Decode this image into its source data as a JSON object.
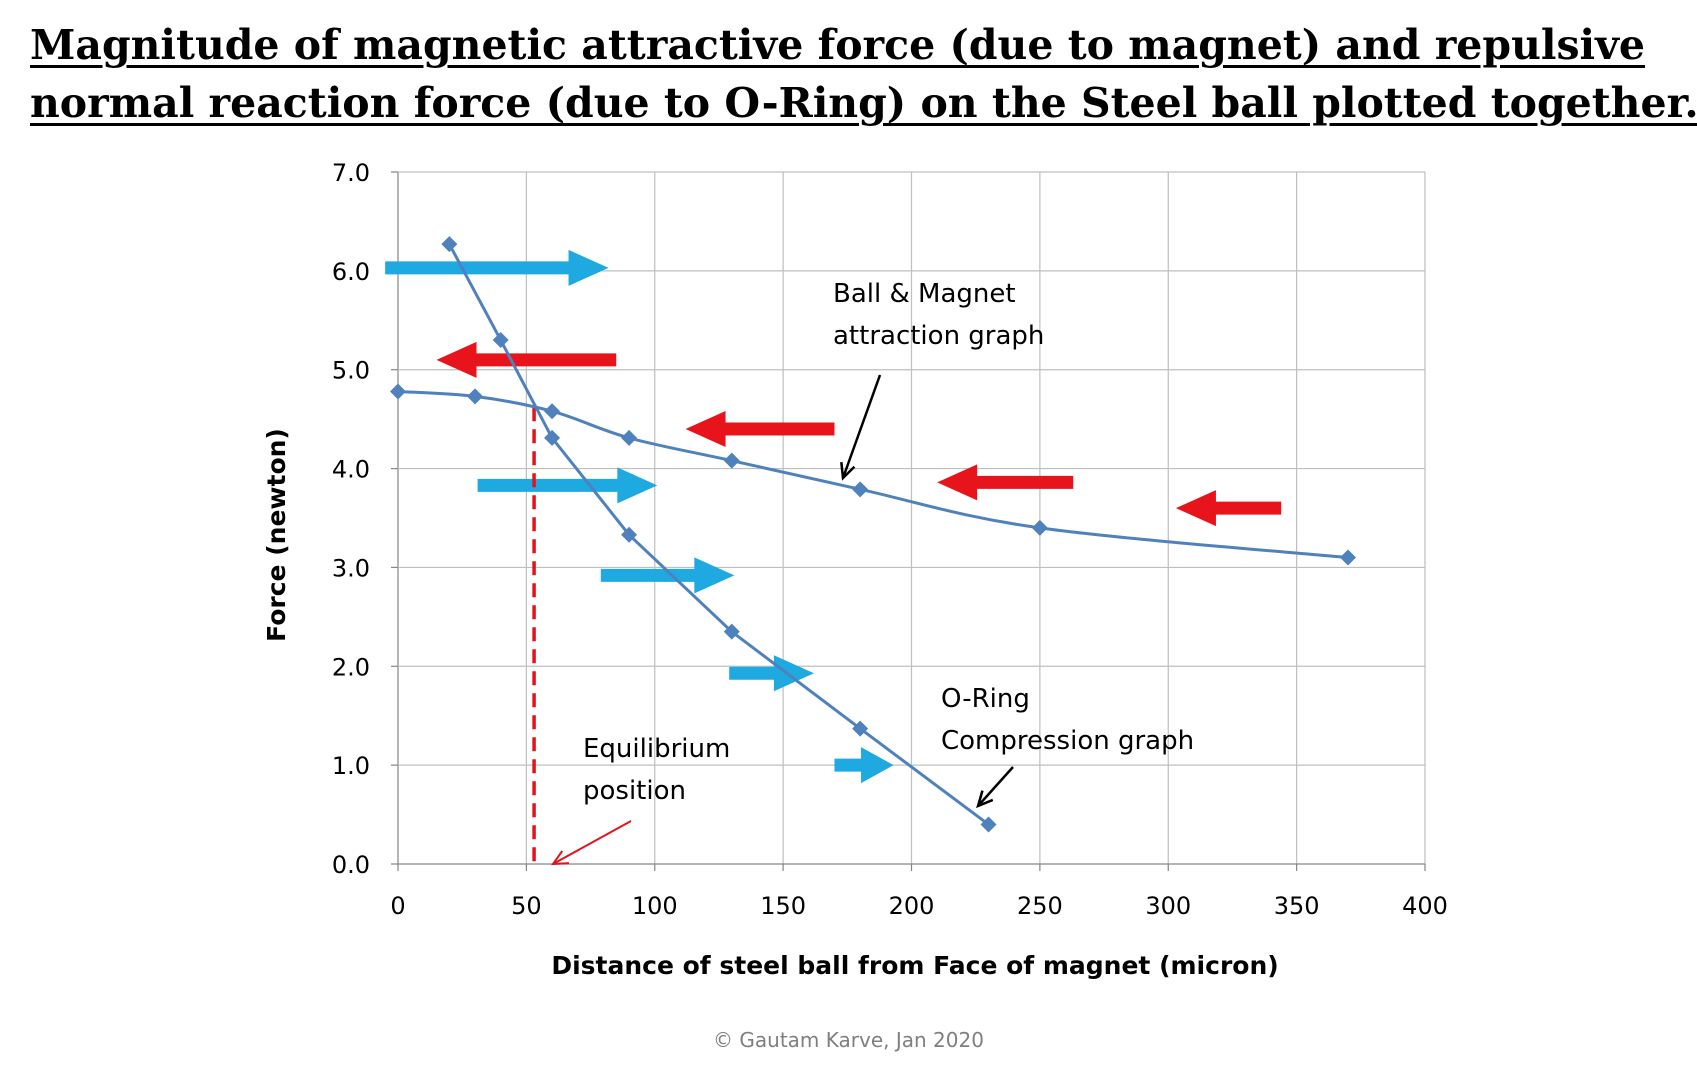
{
  "title_line1": "Magnitude of magnetic attractive force (due to magnet) and repulsive",
  "title_line2": "normal reaction force (due to O-Ring) on the Steel ball plotted together.",
  "credit": "© Gautam Karve, Jan 2020",
  "colors": {
    "series": "#4f81bd",
    "push_right": "#1ea9e0",
    "push_left": "#e8141b",
    "grid": "#bfbfbf",
    "equilibrium": "#e0141b"
  },
  "chart_data": {
    "type": "line",
    "xlabel": "Distance of steel ball from Face of magnet (micron)",
    "ylabel": "Force (newton)",
    "xlim": [
      0,
      400
    ],
    "ylim": [
      0,
      7
    ],
    "x_ticks": [
      0,
      50,
      100,
      150,
      200,
      250,
      300,
      350,
      400
    ],
    "y_ticks": [
      "0.0",
      "1.0",
      "2.0",
      "3.0",
      "4.0",
      "5.0",
      "6.0",
      "7.0"
    ],
    "grid": true,
    "series": [
      {
        "x": [
          0,
          30,
          60,
          90,
          130,
          180,
          250,
          370
        ],
        "y": [
          4.78,
          4.73,
          4.58,
          4.31,
          4.08,
          3.79,
          3.4,
          3.1
        ],
        "marker": "diamond"
      },
      {
        "x": [
          20,
          40,
          60,
          90,
          130,
          180,
          230
        ],
        "y": [
          6.27,
          5.3,
          4.31,
          3.33,
          2.35,
          1.37,
          0.4
        ],
        "marker": "diamond"
      }
    ],
    "equilibrium_x": 53,
    "annotations": [
      {
        "lines": [
          "Ball & Magnet",
          "attraction graph"
        ]
      },
      {
        "lines": [
          "O-Ring",
          "Compression graph"
        ]
      },
      {
        "lines": [
          "Equilibrium",
          "position"
        ]
      }
    ],
    "force_arrows": [
      {
        "direction": "right",
        "x_from": -5,
        "x_to": 82,
        "y": 6.03
      },
      {
        "direction": "left",
        "x_from": 85,
        "x_to": 15,
        "y": 5.1
      },
      {
        "direction": "left",
        "x_from": 170,
        "x_to": 112,
        "y": 4.4
      },
      {
        "direction": "right",
        "x_from": 31,
        "x_to": 101,
        "y": 3.83
      },
      {
        "direction": "left",
        "x_from": 263,
        "x_to": 210,
        "y": 3.86
      },
      {
        "direction": "left",
        "x_from": 344,
        "x_to": 303,
        "y": 3.6
      },
      {
        "direction": "right",
        "x_from": 79,
        "x_to": 131,
        "y": 2.92
      },
      {
        "direction": "right",
        "x_from": 129,
        "x_to": 162,
        "y": 1.93
      },
      {
        "direction": "right",
        "x_from": 170,
        "x_to": 193,
        "y": 1.0
      }
    ]
  }
}
